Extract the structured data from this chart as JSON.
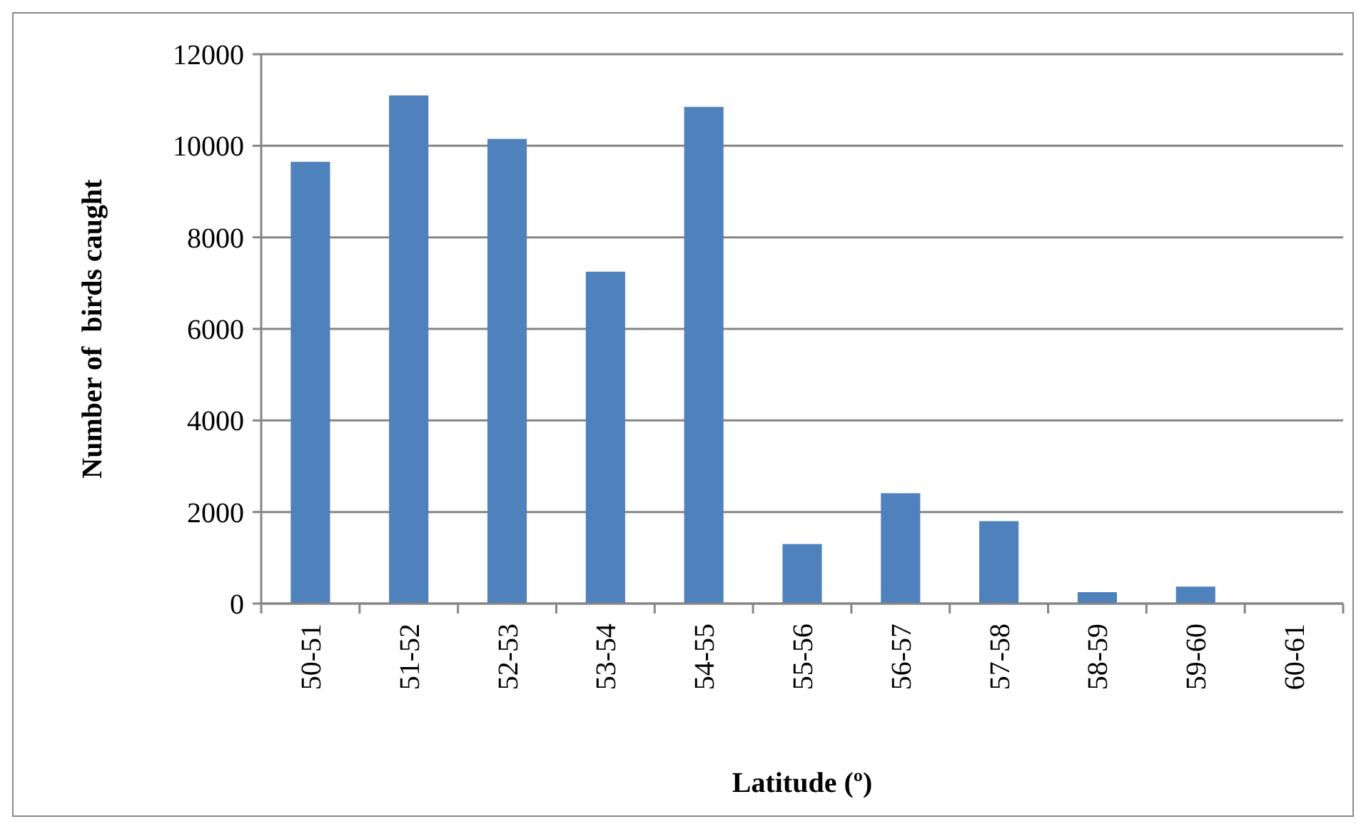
{
  "chart_data": {
    "type": "bar",
    "xlabel": "Latitude (º)",
    "ylabel": "Number of  birds caught",
    "categories": [
      "50-51",
      "51-52",
      "52-53",
      "53-54",
      "54-55",
      "55-56",
      "56-57",
      "57-58",
      "58-59",
      "59-60",
      "60-61"
    ],
    "values": [
      9650,
      11100,
      10150,
      7250,
      10850,
      1300,
      2410,
      1800,
      250,
      370,
      0
    ],
    "color": "#4f81bd",
    "ylim": [
      0,
      12000
    ],
    "yticks": [
      0,
      2000,
      4000,
      6000,
      8000,
      10000,
      12000
    ],
    "grid": "y"
  }
}
